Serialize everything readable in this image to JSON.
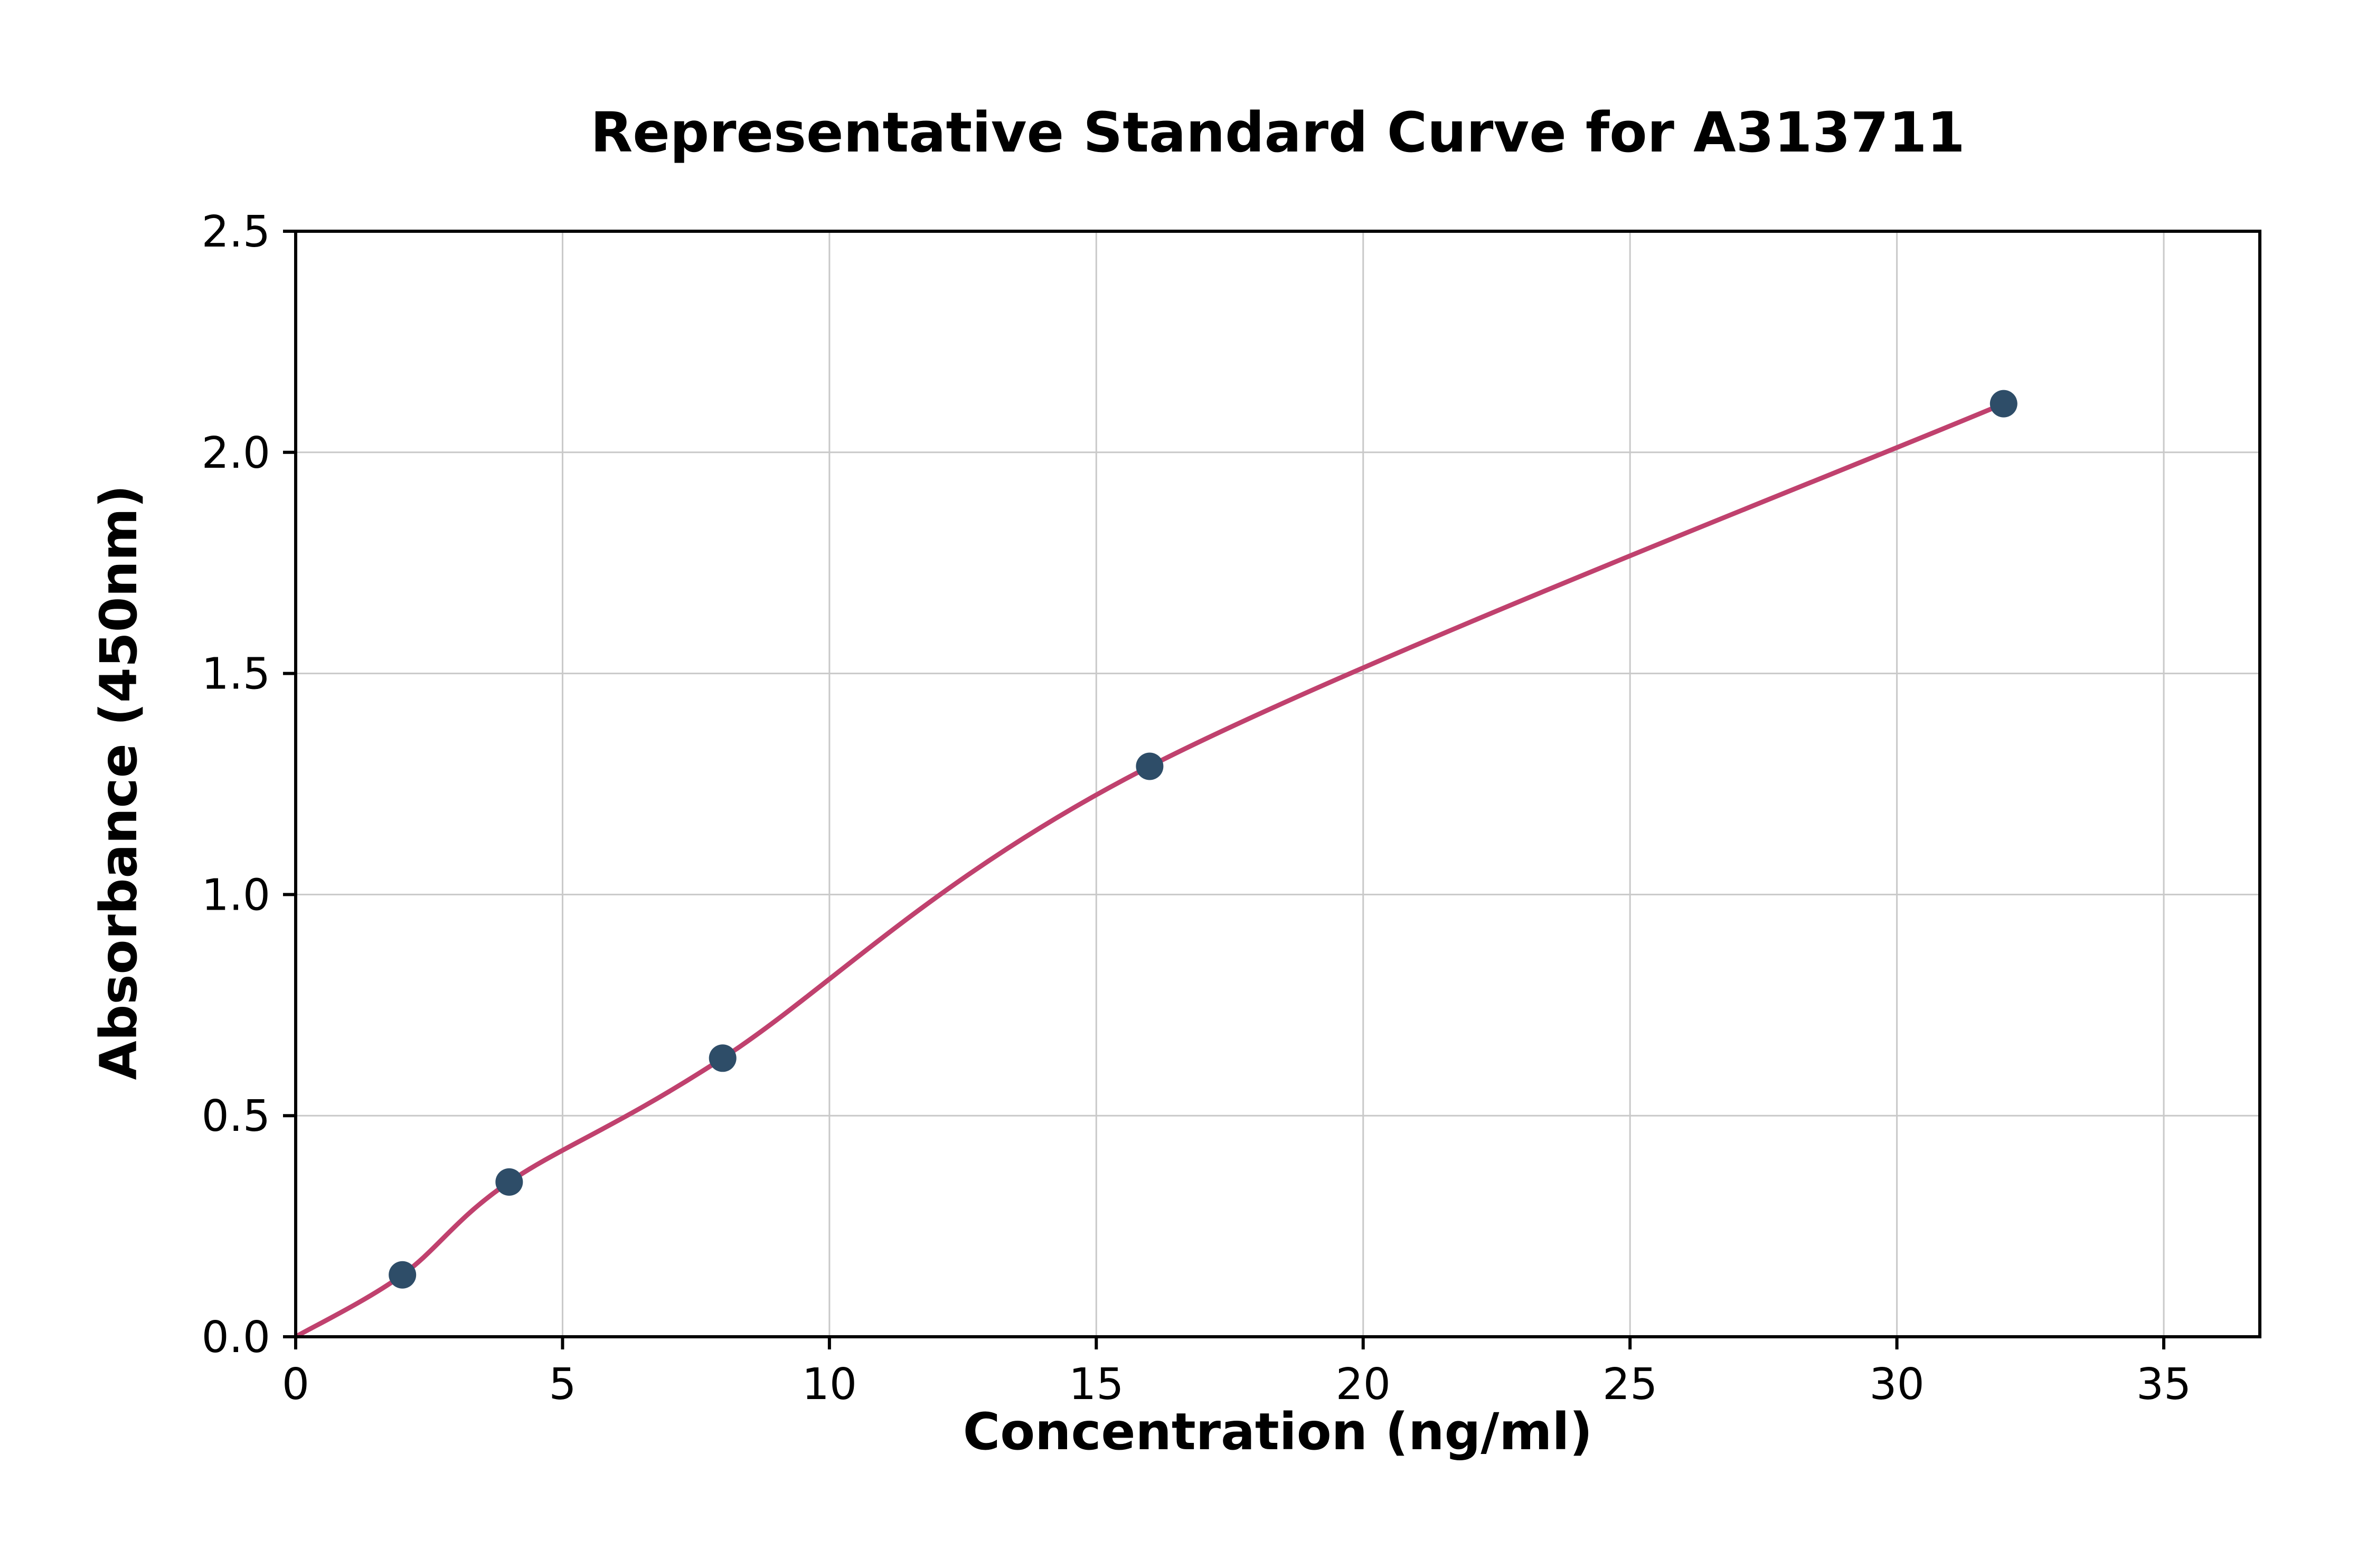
{
  "chart_data": {
    "type": "scatter",
    "title": "Representative Standard Curve for A313711",
    "xlabel": "Concentration (ng/ml)",
    "ylabel": "Absorbance (450nm)",
    "xlim": [
      0,
      36.8
    ],
    "ylim": [
      0,
      2.5
    ],
    "xticks": [
      0,
      5,
      10,
      15,
      20,
      25,
      30,
      35
    ],
    "xtick_labels": [
      "0",
      "5",
      "10",
      "15",
      "20",
      "25",
      "30",
      "35"
    ],
    "yticks": [
      0.0,
      0.5,
      1.0,
      1.5,
      2.0,
      2.5
    ],
    "ytick_labels": [
      "0.0",
      "0.5",
      "1.0",
      "1.5",
      "2.0",
      "2.5"
    ],
    "grid": true,
    "legend": "none",
    "curve_start": {
      "x": 0,
      "y": 0.0
    },
    "points": [
      {
        "x": 2,
        "y": 0.14
      },
      {
        "x": 4,
        "y": 0.35
      },
      {
        "x": 8,
        "y": 0.63
      },
      {
        "x": 16,
        "y": 1.29
      },
      {
        "x": 32,
        "y": 2.11
      }
    ],
    "colors": {
      "curve": "#c0416e",
      "marker": "#2e4d68",
      "grid": "#c9c9c9",
      "axis": "#000000",
      "background": "#ffffff"
    }
  }
}
